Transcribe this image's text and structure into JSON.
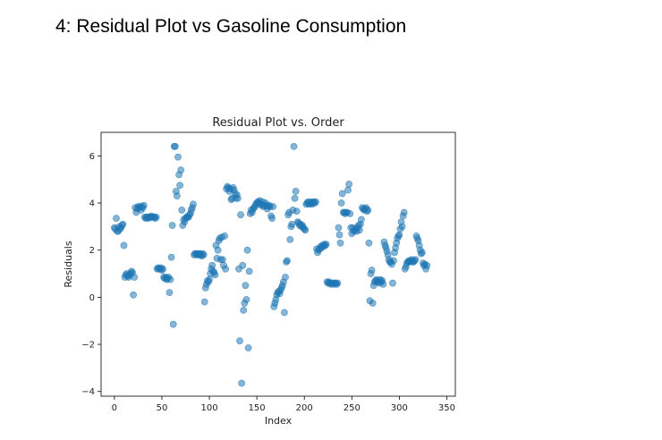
{
  "page": {
    "title": "4: Residual Plot vs Gasoline Consumption"
  },
  "chart_data": {
    "type": "scatter",
    "title": "Residual Plot vs. Order",
    "xlabel": "Index",
    "ylabel": "Residuals",
    "xlim": [
      -14,
      359
    ],
    "ylim": [
      -4.2,
      7.0
    ],
    "xticks": [
      0,
      50,
      100,
      150,
      200,
      250,
      300,
      350
    ],
    "yticks": [
      -4,
      -2,
      0,
      2,
      4,
      6
    ],
    "xtick_labels": [
      "0",
      "50",
      "100",
      "150",
      "200",
      "250",
      "300",
      "350"
    ],
    "ytick_labels": [
      "−4",
      "−2",
      "0",
      "2",
      "4",
      "6"
    ],
    "marker_color": "#1f77b4",
    "marker_alpha": 0.55,
    "grid": false,
    "points": [
      [
        0,
        2.95
      ],
      [
        1,
        2.9
      ],
      [
        2,
        3.35
      ],
      [
        3,
        2.8
      ],
      [
        4,
        2.8
      ],
      [
        5,
        3.0
      ],
      [
        6,
        2.9
      ],
      [
        7,
        2.95
      ],
      [
        8,
        3.05
      ],
      [
        9,
        3.1
      ],
      [
        10,
        2.2
      ],
      [
        11,
        0.85
      ],
      [
        12,
        0.95
      ],
      [
        13,
        1.0
      ],
      [
        14,
        0.9
      ],
      [
        15,
        0.85
      ],
      [
        16,
        0.95
      ],
      [
        17,
        1.0
      ],
      [
        18,
        1.1
      ],
      [
        19,
        1.05
      ],
      [
        20,
        0.1
      ],
      [
        21,
        0.85
      ],
      [
        22,
        3.8
      ],
      [
        23,
        3.6
      ],
      [
        24,
        3.75
      ],
      [
        25,
        3.85
      ],
      [
        26,
        3.8
      ],
      [
        27,
        3.85
      ],
      [
        28,
        3.7
      ],
      [
        29,
        3.85
      ],
      [
        30,
        3.8
      ],
      [
        31,
        3.9
      ],
      [
        32,
        3.4
      ],
      [
        33,
        3.35
      ],
      [
        34,
        3.4
      ],
      [
        35,
        3.4
      ],
      [
        36,
        3.35
      ],
      [
        37,
        3.4
      ],
      [
        38,
        3.4
      ],
      [
        39,
        3.45
      ],
      [
        40,
        3.4
      ],
      [
        41,
        3.4
      ],
      [
        42,
        3.4
      ],
      [
        43,
        3.35
      ],
      [
        44,
        3.4
      ],
      [
        45,
        1.2
      ],
      [
        46,
        1.25
      ],
      [
        47,
        1.2
      ],
      [
        48,
        1.2
      ],
      [
        49,
        1.25
      ],
      [
        50,
        1.15
      ],
      [
        51,
        1.2
      ],
      [
        52,
        0.85
      ],
      [
        53,
        0.8
      ],
      [
        54,
        0.85
      ],
      [
        55,
        0.75
      ],
      [
        56,
        0.8
      ],
      [
        57,
        0.85
      ],
      [
        58,
        0.2
      ],
      [
        59,
        0.75
      ],
      [
        60,
        1.7
      ],
      [
        61,
        3.05
      ],
      [
        62,
        -1.15
      ],
      [
        63,
        6.4
      ],
      [
        64,
        6.4
      ],
      [
        65,
        4.5
      ],
      [
        66,
        4.3
      ],
      [
        67,
        5.95
      ],
      [
        68,
        5.2
      ],
      [
        69,
        4.75
      ],
      [
        70,
        5.4
      ],
      [
        71,
        3.7
      ],
      [
        72,
        3.05
      ],
      [
        73,
        3.3
      ],
      [
        74,
        3.2
      ],
      [
        75,
        3.35
      ],
      [
        76,
        3.4
      ],
      [
        77,
        3.4
      ],
      [
        78,
        3.4
      ],
      [
        79,
        3.5
      ],
      [
        80,
        3.55
      ],
      [
        81,
        3.7
      ],
      [
        82,
        3.8
      ],
      [
        83,
        3.95
      ],
      [
        84,
        1.8
      ],
      [
        85,
        1.85
      ],
      [
        86,
        1.85
      ],
      [
        87,
        1.8
      ],
      [
        88,
        1.85
      ],
      [
        89,
        1.8
      ],
      [
        90,
        1.85
      ],
      [
        91,
        1.8
      ],
      [
        92,
        1.75
      ],
      [
        93,
        1.85
      ],
      [
        94,
        1.8
      ],
      [
        95,
        -0.2
      ],
      [
        96,
        0.4
      ],
      [
        97,
        0.55
      ],
      [
        98,
        0.7
      ],
      [
        99,
        0.65
      ],
      [
        100,
        0.75
      ],
      [
        101,
        1.0
      ],
      [
        102,
        1.2
      ],
      [
        103,
        1.35
      ],
      [
        104,
        1.1
      ],
      [
        105,
        1.05
      ],
      [
        106,
        0.95
      ],
      [
        107,
        2.2
      ],
      [
        108,
        1.65
      ],
      [
        109,
        2.0
      ],
      [
        110,
        2.4
      ],
      [
        111,
        2.5
      ],
      [
        112,
        1.6
      ],
      [
        113,
        2.55
      ],
      [
        114,
        1.6
      ],
      [
        115,
        1.35
      ],
      [
        116,
        2.6
      ],
      [
        117,
        1.2
      ],
      [
        118,
        4.6
      ],
      [
        119,
        4.7
      ],
      [
        120,
        4.65
      ],
      [
        121,
        4.5
      ],
      [
        122,
        4.6
      ],
      [
        123,
        4.15
      ],
      [
        124,
        4.2
      ],
      [
        125,
        4.65
      ],
      [
        126,
        4.55
      ],
      [
        127,
        4.4
      ],
      [
        128,
        4.2
      ],
      [
        129,
        4.35
      ],
      [
        130,
        4.2
      ],
      [
        131,
        1.2
      ],
      [
        132,
        -1.85
      ],
      [
        133,
        3.5
      ],
      [
        134,
        -3.65
      ],
      [
        135,
        1.35
      ],
      [
        136,
        -0.55
      ],
      [
        137,
        -0.25
      ],
      [
        138,
        0.5
      ],
      [
        139,
        -0.1
      ],
      [
        140,
        2.0
      ],
      [
        141,
        -2.15
      ],
      [
        142,
        1.1
      ],
      [
        143,
        3.55
      ],
      [
        144,
        3.7
      ],
      [
        145,
        3.6
      ],
      [
        146,
        3.75
      ],
      [
        147,
        3.8
      ],
      [
        148,
        3.85
      ],
      [
        149,
        3.95
      ],
      [
        150,
        4.0
      ],
      [
        151,
        4.05
      ],
      [
        152,
        4.0
      ],
      [
        153,
        4.1
      ],
      [
        154,
        3.95
      ],
      [
        155,
        3.9
      ],
      [
        156,
        4.05
      ],
      [
        157,
        3.85
      ],
      [
        158,
        3.9
      ],
      [
        159,
        4.0
      ],
      [
        160,
        3.9
      ],
      [
        161,
        3.75
      ],
      [
        162,
        3.85
      ],
      [
        163,
        3.9
      ],
      [
        164,
        3.85
      ],
      [
        165,
        3.45
      ],
      [
        166,
        3.35
      ],
      [
        167,
        3.85
      ],
      [
        168,
        -0.4
      ],
      [
        169,
        -0.25
      ],
      [
        170,
        -0.1
      ],
      [
        171,
        0.1
      ],
      [
        172,
        0.2
      ],
      [
        173,
        0.25
      ],
      [
        174,
        0.15
      ],
      [
        175,
        0.3
      ],
      [
        176,
        0.4
      ],
      [
        177,
        0.5
      ],
      [
        178,
        0.65
      ],
      [
        179,
        -0.65
      ],
      [
        180,
        0.85
      ],
      [
        181,
        1.5
      ],
      [
        182,
        1.55
      ],
      [
        183,
        3.5
      ],
      [
        184,
        3.6
      ],
      [
        185,
        2.45
      ],
      [
        186,
        3.0
      ],
      [
        187,
        3.1
      ],
      [
        188,
        3.7
      ],
      [
        189,
        6.4
      ],
      [
        190,
        4.2
      ],
      [
        191,
        4.5
      ],
      [
        192,
        3.65
      ],
      [
        193,
        3.2
      ],
      [
        194,
        3.15
      ],
      [
        195,
        3.05
      ],
      [
        196,
        3.1
      ],
      [
        197,
        3.0
      ],
      [
        198,
        3.05
      ],
      [
        199,
        2.95
      ],
      [
        200,
        2.9
      ],
      [
        201,
        2.85
      ],
      [
        202,
        3.95
      ],
      [
        203,
        4.0
      ],
      [
        204,
        4.05
      ],
      [
        205,
        3.95
      ],
      [
        206,
        4.0
      ],
      [
        207,
        4.05
      ],
      [
        208,
        3.95
      ],
      [
        209,
        4.0
      ],
      [
        210,
        4.05
      ],
      [
        211,
        4.0
      ],
      [
        212,
        4.05
      ],
      [
        213,
        2.05
      ],
      [
        214,
        1.9
      ],
      [
        215,
        2.0
      ],
      [
        216,
        2.05
      ],
      [
        217,
        2.15
      ],
      [
        218,
        2.1
      ],
      [
        219,
        2.2
      ],
      [
        220,
        2.15
      ],
      [
        221,
        2.25
      ],
      [
        222,
        2.2
      ],
      [
        223,
        2.25
      ],
      [
        224,
        0.65
      ],
      [
        225,
        0.6
      ],
      [
        226,
        0.65
      ],
      [
        227,
        0.6
      ],
      [
        228,
        0.55
      ],
      [
        229,
        0.6
      ],
      [
        230,
        0.6
      ],
      [
        231,
        0.55
      ],
      [
        232,
        0.6
      ],
      [
        233,
        0.6
      ],
      [
        234,
        0.55
      ],
      [
        235,
        0.6
      ],
      [
        236,
        2.95
      ],
      [
        237,
        2.65
      ],
      [
        238,
        2.3
      ],
      [
        239,
        4.0
      ],
      [
        240,
        4.4
      ],
      [
        241,
        3.6
      ],
      [
        242,
        3.6
      ],
      [
        243,
        3.55
      ],
      [
        244,
        3.6
      ],
      [
        245,
        3.6
      ],
      [
        246,
        4.55
      ],
      [
        247,
        4.8
      ],
      [
        248,
        3.55
      ],
      [
        249,
        2.95
      ],
      [
        250,
        2.7
      ],
      [
        251,
        2.95
      ],
      [
        252,
        2.8
      ],
      [
        253,
        2.85
      ],
      [
        254,
        2.9
      ],
      [
        255,
        2.8
      ],
      [
        256,
        2.95
      ],
      [
        257,
        3.05
      ],
      [
        258,
        2.85
      ],
      [
        259,
        3.1
      ],
      [
        260,
        3.3
      ],
      [
        261,
        3.8
      ],
      [
        262,
        3.75
      ],
      [
        263,
        3.7
      ],
      [
        264,
        3.75
      ],
      [
        265,
        3.8
      ],
      [
        266,
        3.65
      ],
      [
        267,
        3.7
      ],
      [
        268,
        2.3
      ],
      [
        269,
        -0.15
      ],
      [
        270,
        1.0
      ],
      [
        271,
        1.15
      ],
      [
        272,
        -0.25
      ],
      [
        273,
        0.5
      ],
      [
        274,
        0.65
      ],
      [
        275,
        0.7
      ],
      [
        276,
        0.75
      ],
      [
        277,
        0.65
      ],
      [
        278,
        0.7
      ],
      [
        279,
        0.6
      ],
      [
        280,
        0.75
      ],
      [
        281,
        0.65
      ],
      [
        282,
        0.7
      ],
      [
        283,
        0.55
      ],
      [
        284,
        2.35
      ],
      [
        285,
        2.2
      ],
      [
        286,
        2.1
      ],
      [
        287,
        1.95
      ],
      [
        288,
        1.8
      ],
      [
        289,
        1.6
      ],
      [
        290,
        1.5
      ],
      [
        291,
        1.5
      ],
      [
        292,
        1.4
      ],
      [
        293,
        0.6
      ],
      [
        294,
        1.55
      ],
      [
        295,
        1.9
      ],
      [
        296,
        2.1
      ],
      [
        297,
        2.3
      ],
      [
        298,
        2.5
      ],
      [
        299,
        2.6
      ],
      [
        300,
        2.65
      ],
      [
        301,
        2.9
      ],
      [
        302,
        3.2
      ],
      [
        303,
        3.0
      ],
      [
        304,
        3.45
      ],
      [
        305,
        3.6
      ],
      [
        306,
        1.2
      ],
      [
        307,
        1.3
      ],
      [
        308,
        1.45
      ],
      [
        309,
        1.5
      ],
      [
        310,
        1.55
      ],
      [
        311,
        1.5
      ],
      [
        312,
        1.55
      ],
      [
        313,
        1.6
      ],
      [
        314,
        1.5
      ],
      [
        315,
        1.5
      ],
      [
        316,
        1.55
      ],
      [
        317,
        1.6
      ],
      [
        318,
        2.6
      ],
      [
        319,
        2.5
      ],
      [
        320,
        2.4
      ],
      [
        321,
        2.2
      ],
      [
        322,
        2.0
      ],
      [
        323,
        1.85
      ],
      [
        324,
        1.9
      ],
      [
        325,
        1.45
      ],
      [
        326,
        1.35
      ],
      [
        327,
        1.4
      ],
      [
        328,
        1.2
      ],
      [
        329,
        1.35
      ]
    ]
  }
}
